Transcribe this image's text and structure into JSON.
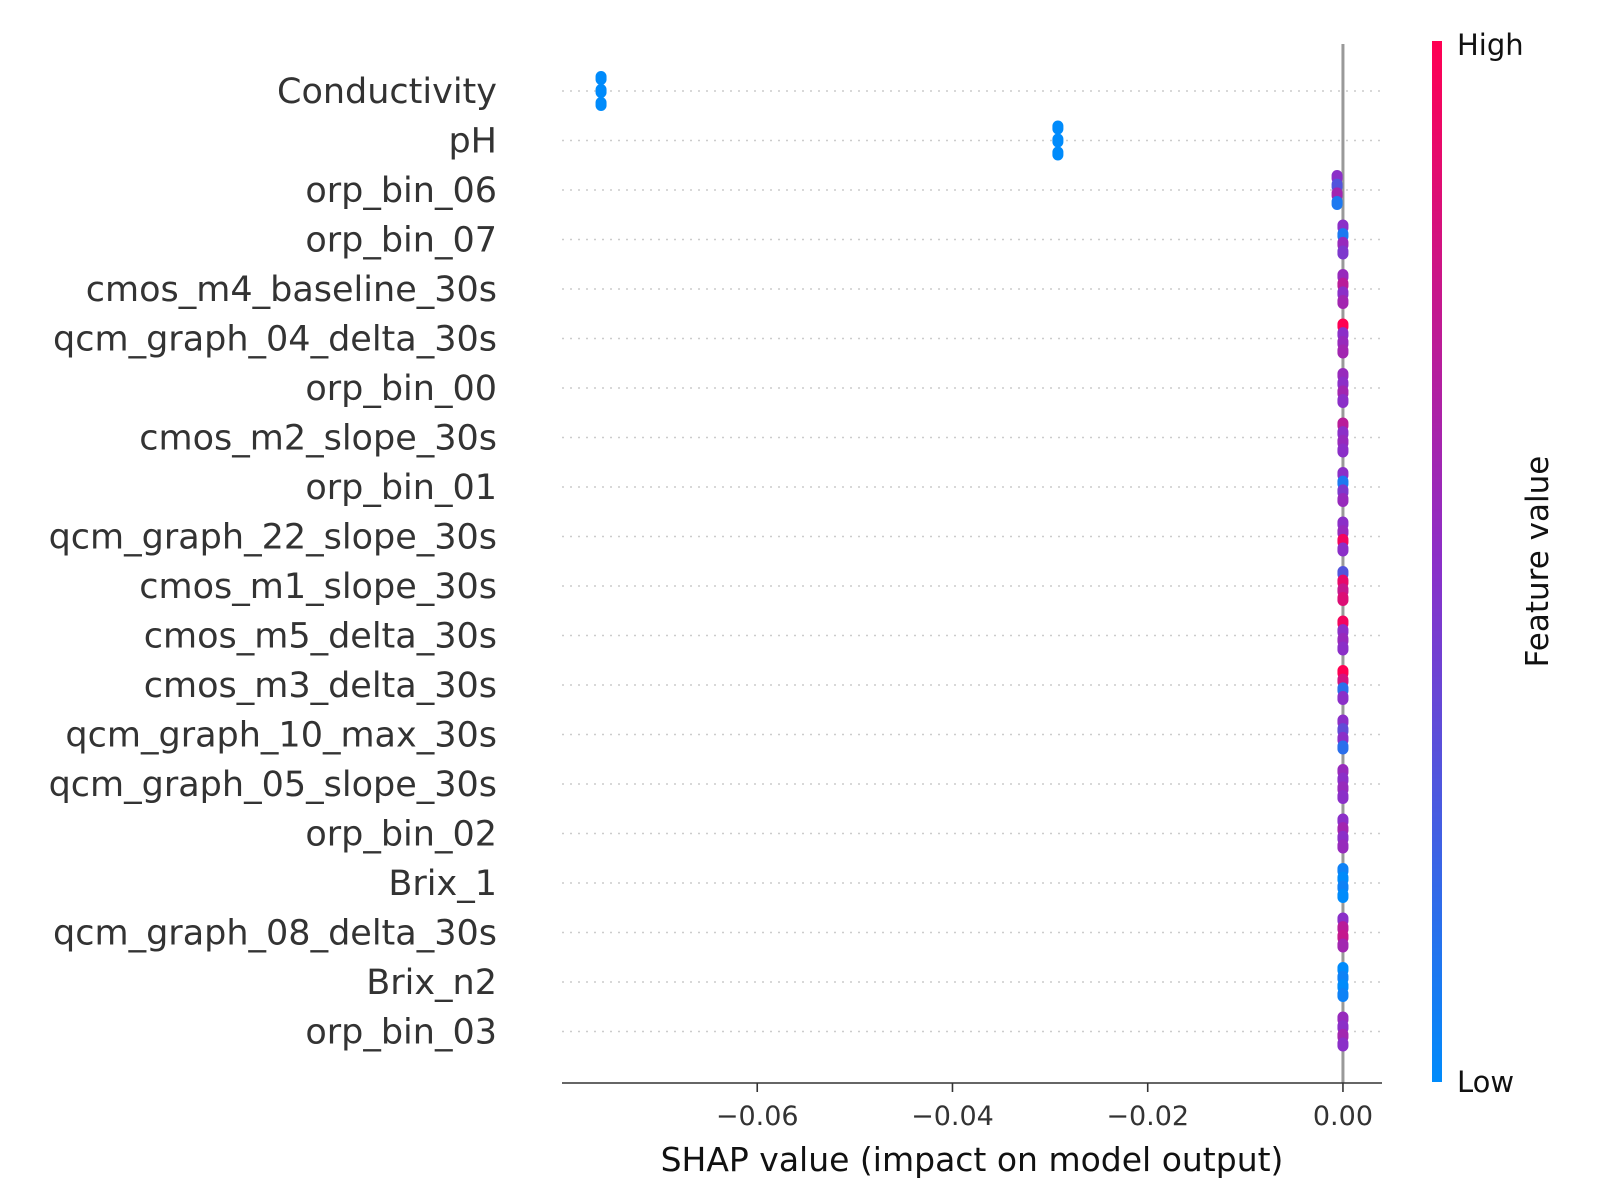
{
  "chart_data": {
    "type": "scatter",
    "subtype": "shap-beeswarm",
    "title": "",
    "xlabel": "SHAP value (impact on model output)",
    "ylabel": "",
    "xlim": [
      -0.08,
      0.004
    ],
    "xticks": [
      -0.06,
      -0.04,
      -0.02,
      0.0
    ],
    "xtick_labels": [
      "−0.06",
      "−0.04",
      "−0.02",
      "0.00"
    ],
    "grid": "dotted horizontal",
    "zero_line": 0.0,
    "colorbar": {
      "label": "Feature value",
      "high_label": "High",
      "low_label": "Low",
      "low_color": "#008bfb",
      "mid_color": "#8b2fc8",
      "high_color": "#ff0052"
    },
    "features": [
      {
        "name": "Conductivity",
        "points": [
          {
            "x": -0.076,
            "v": 0.0
          },
          {
            "x": -0.076,
            "v": 0.0
          },
          {
            "x": -0.076,
            "v": 0.0
          }
        ]
      },
      {
        "name": "pH",
        "points": [
          {
            "x": -0.0292,
            "v": 0.0
          },
          {
            "x": -0.0292,
            "v": 0.0
          },
          {
            "x": -0.0292,
            "v": 0.0
          }
        ]
      },
      {
        "name": "orp_bin_06",
        "points": [
          {
            "x": -0.0006,
            "v": 0.5
          },
          {
            "x": -0.0006,
            "v": 0.3
          },
          {
            "x": -0.0006,
            "v": 0.6
          },
          {
            "x": -0.0006,
            "v": 0.1
          }
        ]
      },
      {
        "name": "orp_bin_07",
        "points": [
          {
            "x": 0.0,
            "v": 0.5
          },
          {
            "x": 0.0,
            "v": 0.1
          },
          {
            "x": 0.0,
            "v": 0.55
          },
          {
            "x": 0.0,
            "v": 0.45
          }
        ]
      },
      {
        "name": "cmos_m4_baseline_30s",
        "points": [
          {
            "x": 0.0,
            "v": 0.55
          },
          {
            "x": 0.0,
            "v": 0.7
          },
          {
            "x": 0.0,
            "v": 0.5
          },
          {
            "x": 0.0,
            "v": 0.6
          }
        ]
      },
      {
        "name": "qcm_graph_04_delta_30s",
        "points": [
          {
            "x": 0.0,
            "v": 1.0
          },
          {
            "x": 0.0,
            "v": 0.5
          },
          {
            "x": 0.0,
            "v": 0.55
          },
          {
            "x": 0.0,
            "v": 0.6
          }
        ]
      },
      {
        "name": "orp_bin_00",
        "points": [
          {
            "x": 0.0,
            "v": 0.55
          },
          {
            "x": 0.0,
            "v": 0.5
          },
          {
            "x": 0.0,
            "v": 0.6
          },
          {
            "x": 0.0,
            "v": 0.5
          }
        ]
      },
      {
        "name": "cmos_m2_slope_30s",
        "points": [
          {
            "x": 0.0,
            "v": 0.7
          },
          {
            "x": 0.0,
            "v": 0.5
          },
          {
            "x": 0.0,
            "v": 0.55
          },
          {
            "x": 0.0,
            "v": 0.5
          }
        ]
      },
      {
        "name": "orp_bin_01",
        "points": [
          {
            "x": 0.0,
            "v": 0.5
          },
          {
            "x": 0.0,
            "v": 0.1
          },
          {
            "x": 0.0,
            "v": 0.45
          },
          {
            "x": 0.0,
            "v": 0.55
          }
        ]
      },
      {
        "name": "qcm_graph_22_slope_30s",
        "points": [
          {
            "x": 0.0,
            "v": 0.5
          },
          {
            "x": 0.0,
            "v": 0.55
          },
          {
            "x": 0.0,
            "v": 0.95
          },
          {
            "x": 0.0,
            "v": 0.5
          }
        ]
      },
      {
        "name": "cmos_m1_slope_30s",
        "points": [
          {
            "x": 0.0,
            "v": 0.3
          },
          {
            "x": 0.0,
            "v": 0.9
          },
          {
            "x": 0.0,
            "v": 0.75
          },
          {
            "x": 0.0,
            "v": 0.85
          }
        ]
      },
      {
        "name": "cmos_m5_delta_30s",
        "points": [
          {
            "x": 0.0,
            "v": 0.95
          },
          {
            "x": 0.0,
            "v": 0.5
          },
          {
            "x": 0.0,
            "v": 0.55
          },
          {
            "x": 0.0,
            "v": 0.5
          }
        ]
      },
      {
        "name": "cmos_m3_delta_30s",
        "points": [
          {
            "x": 0.0,
            "v": 1.0
          },
          {
            "x": 0.0,
            "v": 0.8
          },
          {
            "x": 0.0,
            "v": 0.15
          },
          {
            "x": 0.0,
            "v": 0.5
          }
        ]
      },
      {
        "name": "qcm_graph_10_max_30s",
        "points": [
          {
            "x": 0.0,
            "v": 0.5
          },
          {
            "x": 0.0,
            "v": 0.35
          },
          {
            "x": 0.0,
            "v": 0.5
          },
          {
            "x": 0.0,
            "v": 0.15
          }
        ]
      },
      {
        "name": "qcm_graph_05_slope_30s",
        "points": [
          {
            "x": 0.0,
            "v": 0.55
          },
          {
            "x": 0.0,
            "v": 0.5
          },
          {
            "x": 0.0,
            "v": 0.55
          },
          {
            "x": 0.0,
            "v": 0.5
          }
        ]
      },
      {
        "name": "orp_bin_02",
        "points": [
          {
            "x": 0.0,
            "v": 0.5
          },
          {
            "x": 0.0,
            "v": 0.6
          },
          {
            "x": 0.0,
            "v": 0.5
          },
          {
            "x": 0.0,
            "v": 0.55
          }
        ]
      },
      {
        "name": "Brix_1",
        "points": [
          {
            "x": 0.0,
            "v": 0.05
          },
          {
            "x": 0.0,
            "v": 0.0
          },
          {
            "x": 0.0,
            "v": 0.05
          },
          {
            "x": 0.0,
            "v": 0.0
          }
        ]
      },
      {
        "name": "qcm_graph_08_delta_30s",
        "points": [
          {
            "x": 0.0,
            "v": 0.5
          },
          {
            "x": 0.0,
            "v": 0.7
          },
          {
            "x": 0.0,
            "v": 0.75
          },
          {
            "x": 0.0,
            "v": 0.6
          }
        ]
      },
      {
        "name": "Brix_n2",
        "points": [
          {
            "x": 0.0,
            "v": 0.0
          },
          {
            "x": 0.0,
            "v": 0.05
          },
          {
            "x": 0.0,
            "v": 0.0
          },
          {
            "x": 0.0,
            "v": 0.05
          }
        ]
      },
      {
        "name": "orp_bin_03",
        "points": [
          {
            "x": 0.0,
            "v": 0.55
          },
          {
            "x": 0.0,
            "v": 0.5
          },
          {
            "x": 0.0,
            "v": 0.6
          },
          {
            "x": 0.0,
            "v": 0.5
          }
        ]
      }
    ]
  }
}
